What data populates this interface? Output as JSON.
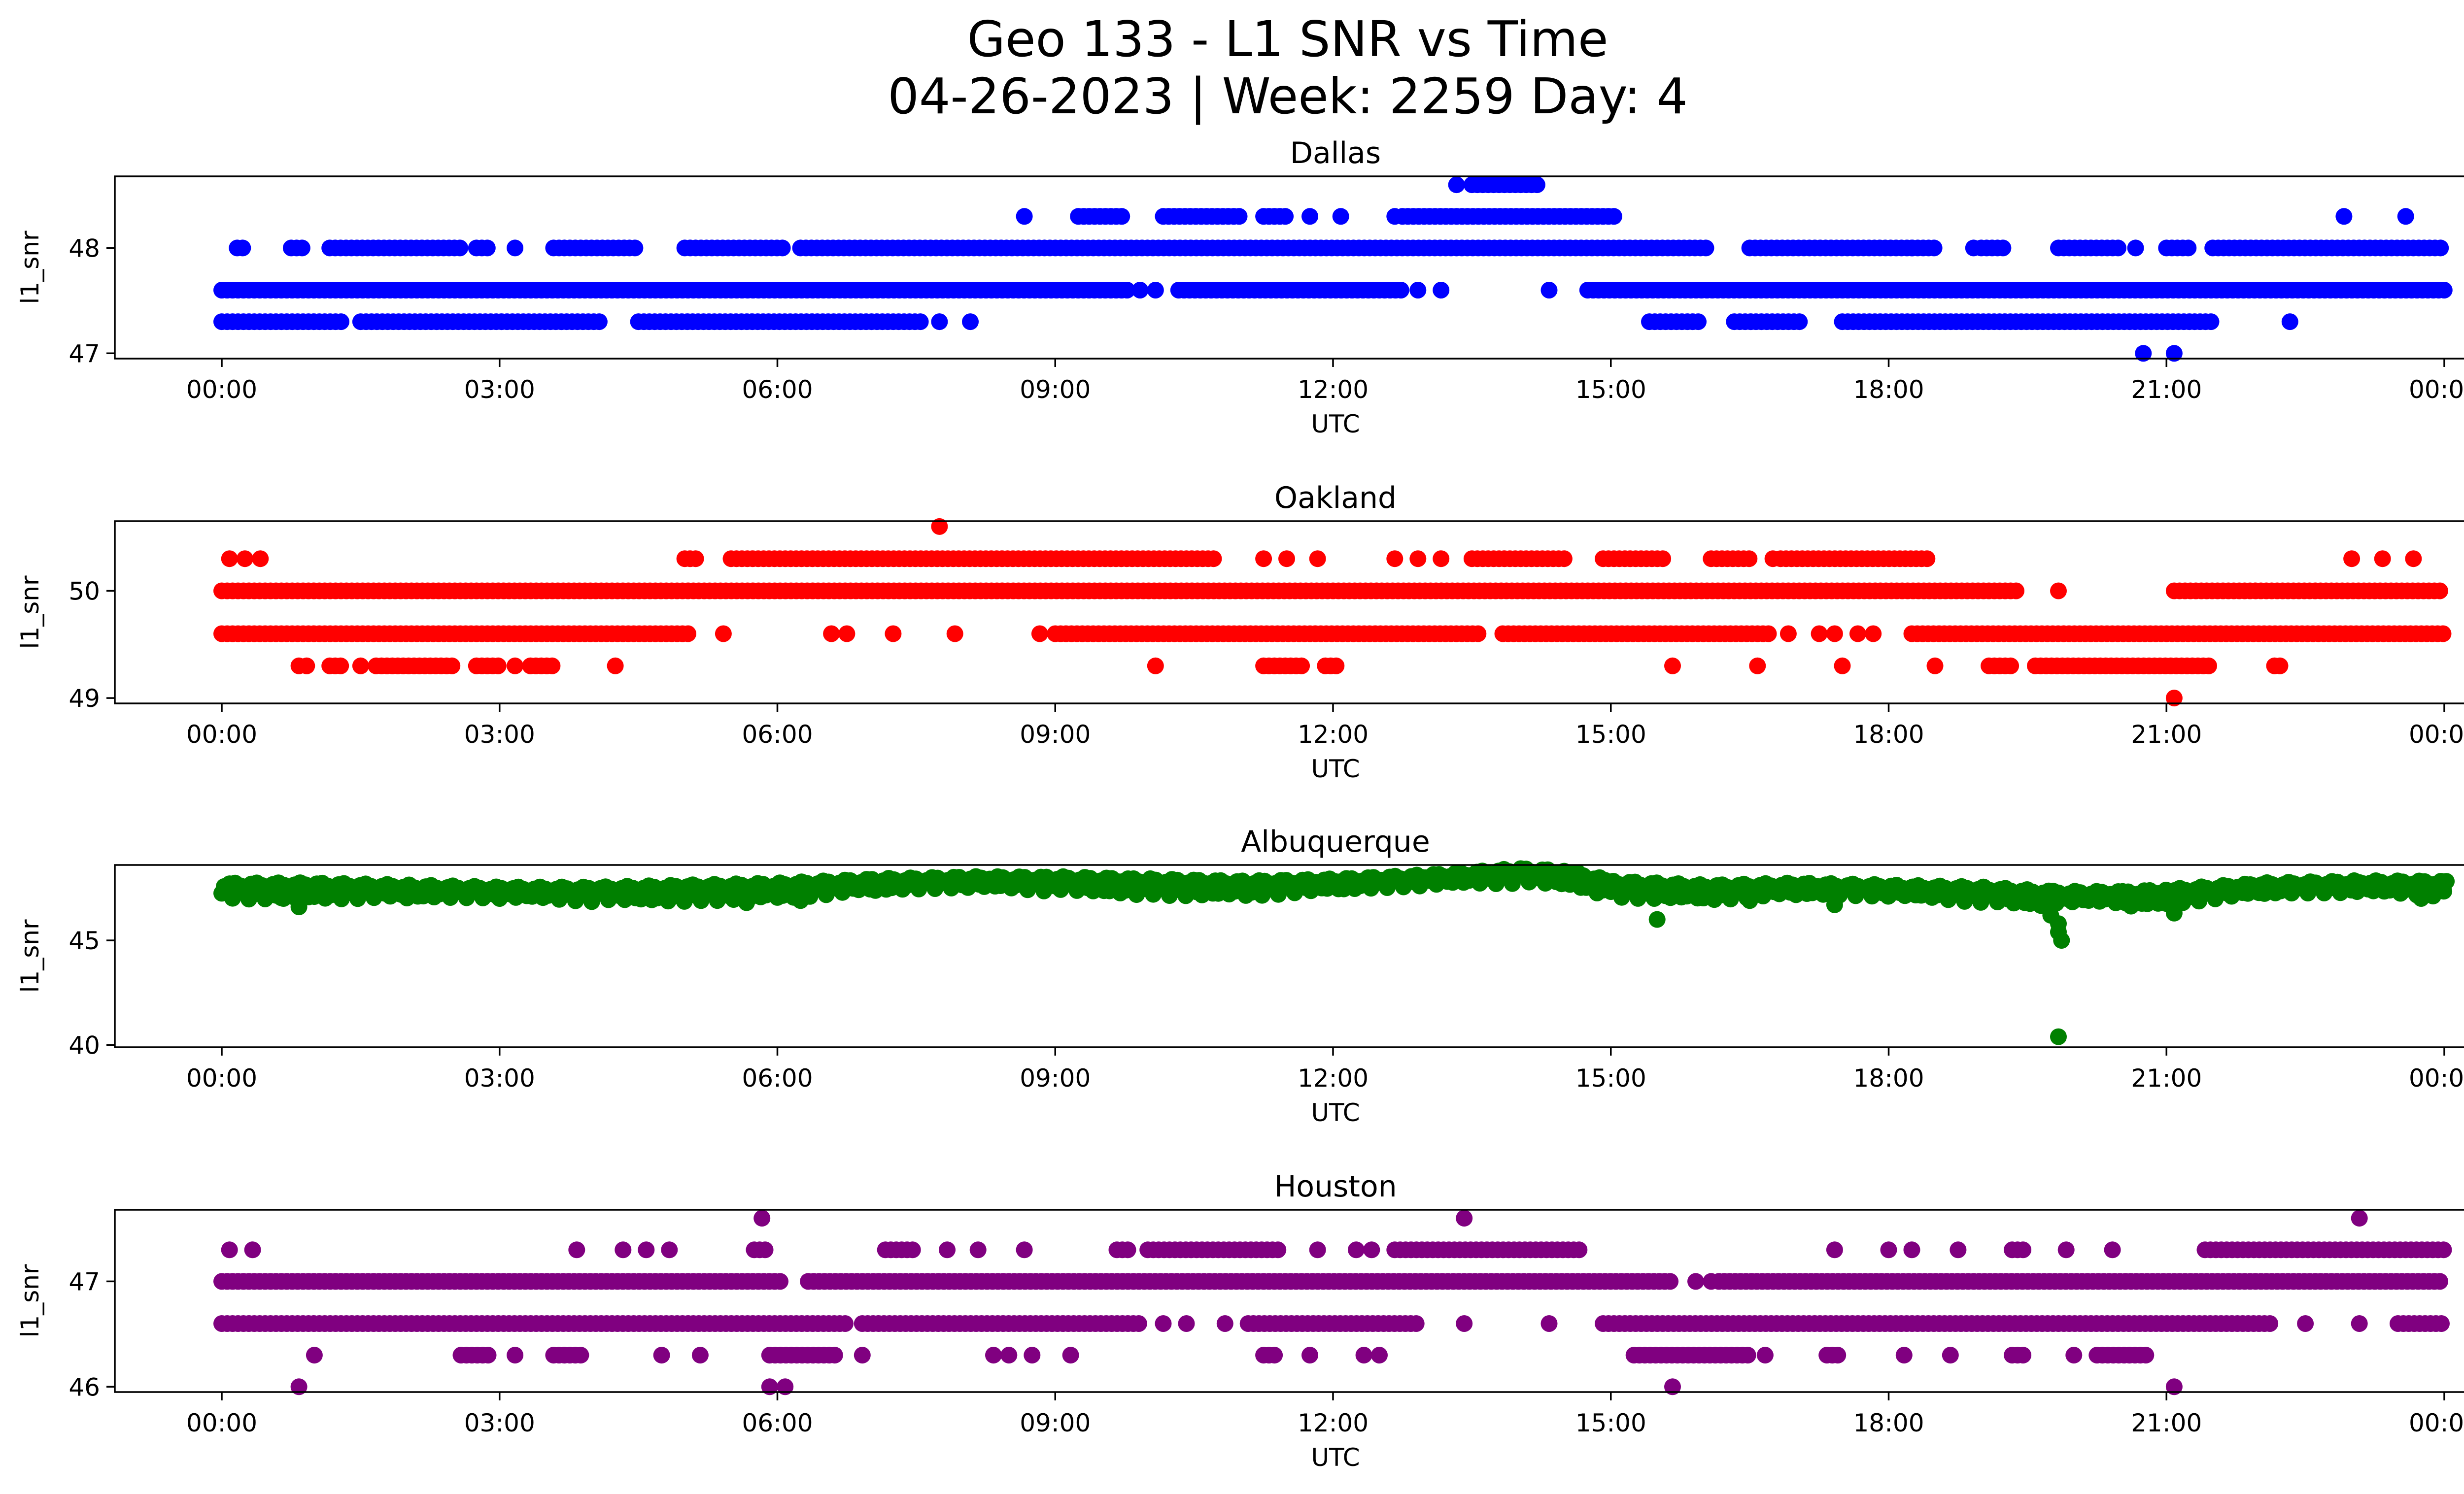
{
  "figure": {
    "title_line1": "Geo 133 - L1 SNR vs Time",
    "title_line2": "04-26-2023 | Week: 2259 Day: 4"
  },
  "chart_data": [
    {
      "type": "scatter",
      "title": "Dallas",
      "xlabel": "UTC",
      "ylabel": "l1_snr",
      "color": "#0000ff",
      "xlim": [
        "00:00",
        "24:00"
      ],
      "xticks": [
        "00:00",
        "03:00",
        "06:00",
        "09:00",
        "12:00",
        "15:00",
        "18:00",
        "21:00",
        "00:00"
      ],
      "ylim": [
        46.95,
        48.68
      ],
      "yticks": [
        47,
        48
      ],
      "levels": [
        {
          "y": 47.3,
          "segments": [
            [
              "00:00",
              "01:20"
            ],
            [
              "01:30",
              "04:05"
            ],
            [
              "04:30",
              "07:35"
            ],
            [
              "15:25",
              "16:00"
            ],
            [
              "16:20",
              "17:05"
            ],
            [
              "17:30",
              "21:30"
            ]
          ],
          "points": [
            "07:45",
            "08:05",
            "22:20"
          ]
        },
        {
          "y": 47.6,
          "segments": [
            [
              "00:00",
              "09:50"
            ],
            [
              "10:20",
              "12:45"
            ],
            [
              "14:45",
              "24:00"
            ]
          ],
          "points": [
            "09:55",
            "10:05",
            "12:55",
            "13:10",
            "14:20"
          ]
        },
        {
          "y": 48.0,
          "segments": [
            [
              "00:10",
              "00:15"
            ],
            [
              "00:45",
              "00:55"
            ],
            [
              "01:10",
              "02:35"
            ],
            [
              "02:45",
              "02:55"
            ],
            [
              "03:35",
              "04:30"
            ],
            [
              "05:00",
              "06:05"
            ],
            [
              "06:15",
              "16:05"
            ],
            [
              "16:30",
              "18:30"
            ],
            [
              "19:00",
              "19:15"
            ],
            [
              "19:50",
              "20:30"
            ],
            [
              "21:00",
              "21:15"
            ],
            [
              "21:30",
              "24:00"
            ]
          ],
          "points": [
            "03:10",
            "18:15",
            "18:55",
            "20:40"
          ]
        },
        {
          "y": 48.3,
          "segments": [
            [
              "09:15",
              "09:45"
            ],
            [
              "10:10",
              "11:00"
            ],
            [
              "11:15",
              "11:30"
            ],
            [
              "12:45",
              "15:05"
            ]
          ],
          "points": [
            "08:40",
            "11:45",
            "12:05",
            "12:40",
            "22:55",
            "23:35"
          ]
        },
        {
          "y": 48.6,
          "segments": [
            [
              "13:30",
              "14:15"
            ]
          ],
          "points": [
            "13:20"
          ]
        },
        {
          "y": 47.0,
          "segments": [],
          "points": [
            "20:45",
            "21:05"
          ]
        }
      ]
    },
    {
      "type": "scatter",
      "title": "Oakland",
      "xlabel": "UTC",
      "ylabel": "l1_snr",
      "color": "#ff0000",
      "xlim": [
        "00:00",
        "24:00"
      ],
      "xticks": [
        "00:00",
        "03:00",
        "06:00",
        "09:00",
        "12:00",
        "15:00",
        "18:00",
        "21:00",
        "00:00"
      ],
      "ylim": [
        48.95,
        50.65
      ],
      "yticks": [
        49,
        50
      ],
      "levels": [
        {
          "y": 49.0,
          "segments": [],
          "points": [
            "21:05"
          ]
        },
        {
          "y": 49.3,
          "segments": [
            [
              "01:10",
              "01:20"
            ],
            [
              "01:40",
              "02:30"
            ],
            [
              "02:45",
              "03:00"
            ],
            [
              "03:20",
              "03:35"
            ],
            [
              "11:15",
              "11:40"
            ],
            [
              "11:55",
              "12:05"
            ],
            [
              "19:05",
              "19:20"
            ],
            [
              "19:35",
              "21:30"
            ],
            [
              "22:10",
              "22:15"
            ]
          ],
          "points": [
            "00:50",
            "00:55",
            "01:30",
            "03:10",
            "04:15",
            "10:05",
            "15:40",
            "16:35",
            "17:30",
            "18:30"
          ]
        },
        {
          "y": 49.6,
          "segments": [
            [
              "00:00",
              "05:05"
            ],
            [
              "09:00",
              "13:35"
            ],
            [
              "13:50",
              "16:45"
            ],
            [
              "18:15",
              "24:00"
            ]
          ],
          "points": [
            "05:25",
            "06:35",
            "06:45",
            "07:15",
            "07:55",
            "08:50",
            "16:55",
            "17:15",
            "17:25",
            "17:40",
            "17:50"
          ]
        },
        {
          "y": 50.0,
          "segments": [
            [
              "00:00",
              "19:25"
            ],
            [
              "21:05",
              "24:00"
            ]
          ],
          "points": [
            "19:50"
          ]
        },
        {
          "y": 50.3,
          "segments": [
            [
              "05:00",
              "05:10"
            ],
            [
              "05:30",
              "10:45"
            ],
            [
              "13:30",
              "14:30"
            ],
            [
              "14:55",
              "15:35"
            ],
            [
              "16:05",
              "16:30"
            ],
            [
              "16:50",
              "18:25"
            ]
          ],
          "points": [
            "00:05",
            "00:15",
            "00:25",
            "11:15",
            "11:30",
            "11:50",
            "12:40",
            "12:55",
            "13:10",
            "16:45",
            "23:00",
            "23:20",
            "23:40"
          ]
        },
        {
          "y": 50.6,
          "segments": [],
          "points": [
            "07:45"
          ]
        }
      ]
    },
    {
      "type": "scatter",
      "title": "Albuquerque",
      "xlabel": "UTC",
      "ylabel": "l1_snr",
      "color": "#008000",
      "xlim": [
        "00:00",
        "24:00"
      ],
      "xticks": [
        "00:00",
        "03:00",
        "06:00",
        "09:00",
        "12:00",
        "15:00",
        "18:00",
        "21:00",
        "00:00"
      ],
      "ylim": [
        39.9,
        48.6
      ],
      "yticks": [
        40,
        45
      ],
      "band": [
        [
          "00:00",
          47.3
        ],
        [
          "01:00",
          47.3
        ],
        [
          "02:00",
          47.2
        ],
        [
          "03:00",
          47.1
        ],
        [
          "04:00",
          47.1
        ],
        [
          "05:00",
          47.2
        ],
        [
          "06:00",
          47.3
        ],
        [
          "07:00",
          47.5
        ],
        [
          "08:00",
          47.6
        ],
        [
          "09:00",
          47.6
        ],
        [
          "10:00",
          47.5
        ],
        [
          "11:00",
          47.4
        ],
        [
          "12:00",
          47.5
        ],
        [
          "13:00",
          47.7
        ],
        [
          "14:00",
          48.0
        ],
        [
          "14:30",
          47.9
        ],
        [
          "15:00",
          47.4
        ],
        [
          "16:00",
          47.2
        ],
        [
          "17:00",
          47.3
        ],
        [
          "18:00",
          47.2
        ],
        [
          "19:00",
          47.1
        ],
        [
          "19:45",
          46.9
        ],
        [
          "20:30",
          46.9
        ],
        [
          "21:00",
          47.0
        ],
        [
          "22:00",
          47.3
        ],
        [
          "23:00",
          47.4
        ],
        [
          "24:00",
          47.4
        ]
      ],
      "points": [
        [
          "00:40",
          47.0
        ],
        [
          "00:50",
          46.6
        ],
        [
          "05:40",
          46.8
        ],
        [
          "06:15",
          46.9
        ],
        [
          "15:30",
          46.0
        ],
        [
          "16:30",
          46.9
        ],
        [
          "17:25",
          46.7
        ],
        [
          "19:45",
          46.2
        ],
        [
          "19:50",
          45.8
        ],
        [
          "19:50",
          45.4
        ],
        [
          "19:52",
          45.0
        ],
        [
          "19:50",
          40.4
        ],
        [
          "21:05",
          46.3
        ],
        [
          "23:45",
          47.0
        ]
      ]
    },
    {
      "type": "scatter",
      "title": "Houston",
      "xlabel": "UTC",
      "ylabel": "l1_snr",
      "color": "#800080",
      "xlim": [
        "00:00",
        "24:00"
      ],
      "xticks": [
        "00:00",
        "03:00",
        "06:00",
        "09:00",
        "12:00",
        "15:00",
        "18:00",
        "21:00",
        "00:00"
      ],
      "ylim": [
        45.95,
        47.68
      ],
      "yticks": [
        46,
        47
      ],
      "levels": [
        {
          "y": 46.0,
          "segments": [],
          "points": [
            "00:50",
            "05:55",
            "06:05",
            "15:40",
            "21:05"
          ]
        },
        {
          "y": 46.3,
          "segments": [
            [
              "02:35",
              "02:55"
            ],
            [
              "03:35",
              "03:55"
            ],
            [
              "05:55",
              "06:40"
            ],
            [
              "11:15",
              "11:25"
            ],
            [
              "15:15",
              "16:30"
            ],
            [
              "17:20",
              "17:30"
            ],
            [
              "19:20",
              "19:30"
            ],
            [
              "20:15",
              "20:50"
            ]
          ],
          "points": [
            "01:00",
            "03:10",
            "04:45",
            "05:10",
            "06:55",
            "08:20",
            "08:30",
            "08:45",
            "09:10",
            "11:45",
            "12:20",
            "12:30",
            "16:40",
            "18:10",
            "18:40",
            "20:00"
          ]
        },
        {
          "y": 46.6,
          "segments": [
            [
              "00:00",
              "06:45"
            ],
            [
              "06:55",
              "09:55"
            ],
            [
              "11:05",
              "12:55"
            ],
            [
              "14:55",
              "22:10"
            ],
            [
              "23:30",
              "24:00"
            ]
          ],
          "points": [
            "10:10",
            "10:25",
            "10:50",
            "13:25",
            "14:20",
            "22:30",
            "23:05"
          ]
        },
        {
          "y": 47.0,
          "segments": [
            [
              "00:00",
              "06:05"
            ],
            [
              "06:20",
              "15:40"
            ],
            [
              "16:10",
              "24:00"
            ]
          ],
          "points": [
            "15:55",
            "16:05"
          ]
        },
        {
          "y": 47.3,
          "segments": [
            [
              "05:45",
              "05:55"
            ],
            [
              "07:10",
              "07:30"
            ],
            [
              "09:40",
              "09:50"
            ],
            [
              "10:00",
              "11:25"
            ],
            [
              "12:40",
              "14:40"
            ],
            [
              "19:20",
              "19:30"
            ],
            [
              "21:25",
              "24:00"
            ]
          ],
          "points": [
            "00:05",
            "00:20",
            "03:50",
            "04:20",
            "04:35",
            "04:50",
            "07:50",
            "08:10",
            "08:40",
            "11:50",
            "12:15",
            "12:25",
            "17:25",
            "18:00",
            "18:15",
            "18:45",
            "19:55",
            "20:25"
          ]
        },
        {
          "y": 47.6,
          "segments": [],
          "points": [
            "05:50",
            "13:25",
            "23:05"
          ]
        }
      ]
    }
  ]
}
